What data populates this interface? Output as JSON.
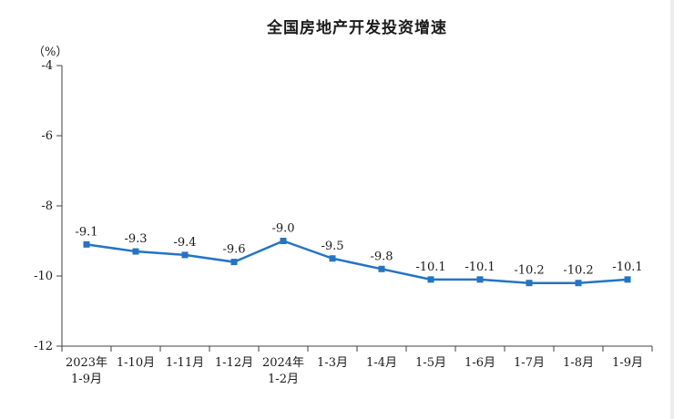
{
  "chart_data": {
    "type": "line",
    "title": "全国房地产开发投资增速",
    "unit_label": "（%）",
    "categories": [
      [
        "2023年",
        "1-9月"
      ],
      [
        "1-10月"
      ],
      [
        "1-11月"
      ],
      [
        "1-12月"
      ],
      [
        "2024年",
        "1-2月"
      ],
      [
        "1-3月"
      ],
      [
        "1-4月"
      ],
      [
        "1-5月"
      ],
      [
        "1-6月"
      ],
      [
        "1-7月"
      ],
      [
        "1-8月"
      ],
      [
        "1-9月"
      ]
    ],
    "values": [
      -9.1,
      -9.3,
      -9.4,
      -9.6,
      -9.0,
      -9.5,
      -9.8,
      -10.1,
      -10.1,
      -10.2,
      -10.2,
      -10.1
    ],
    "data_labels": [
      "-9.1",
      "-9.3",
      "-9.4",
      "-9.6",
      "-9.0",
      "-9.5",
      "-9.8",
      "-10.1",
      "-10.1",
      "-10.2",
      "-10.2",
      "-10.1"
    ],
    "ylim": [
      -12,
      -4
    ],
    "yticks": [
      -4,
      -6,
      -8,
      -10,
      -12
    ],
    "xlabel": "",
    "ylabel": "",
    "grid": false,
    "legend": "none",
    "line_color": "#2474c5",
    "axis_color": "#404040",
    "text_color": "#1a1a1a"
  }
}
